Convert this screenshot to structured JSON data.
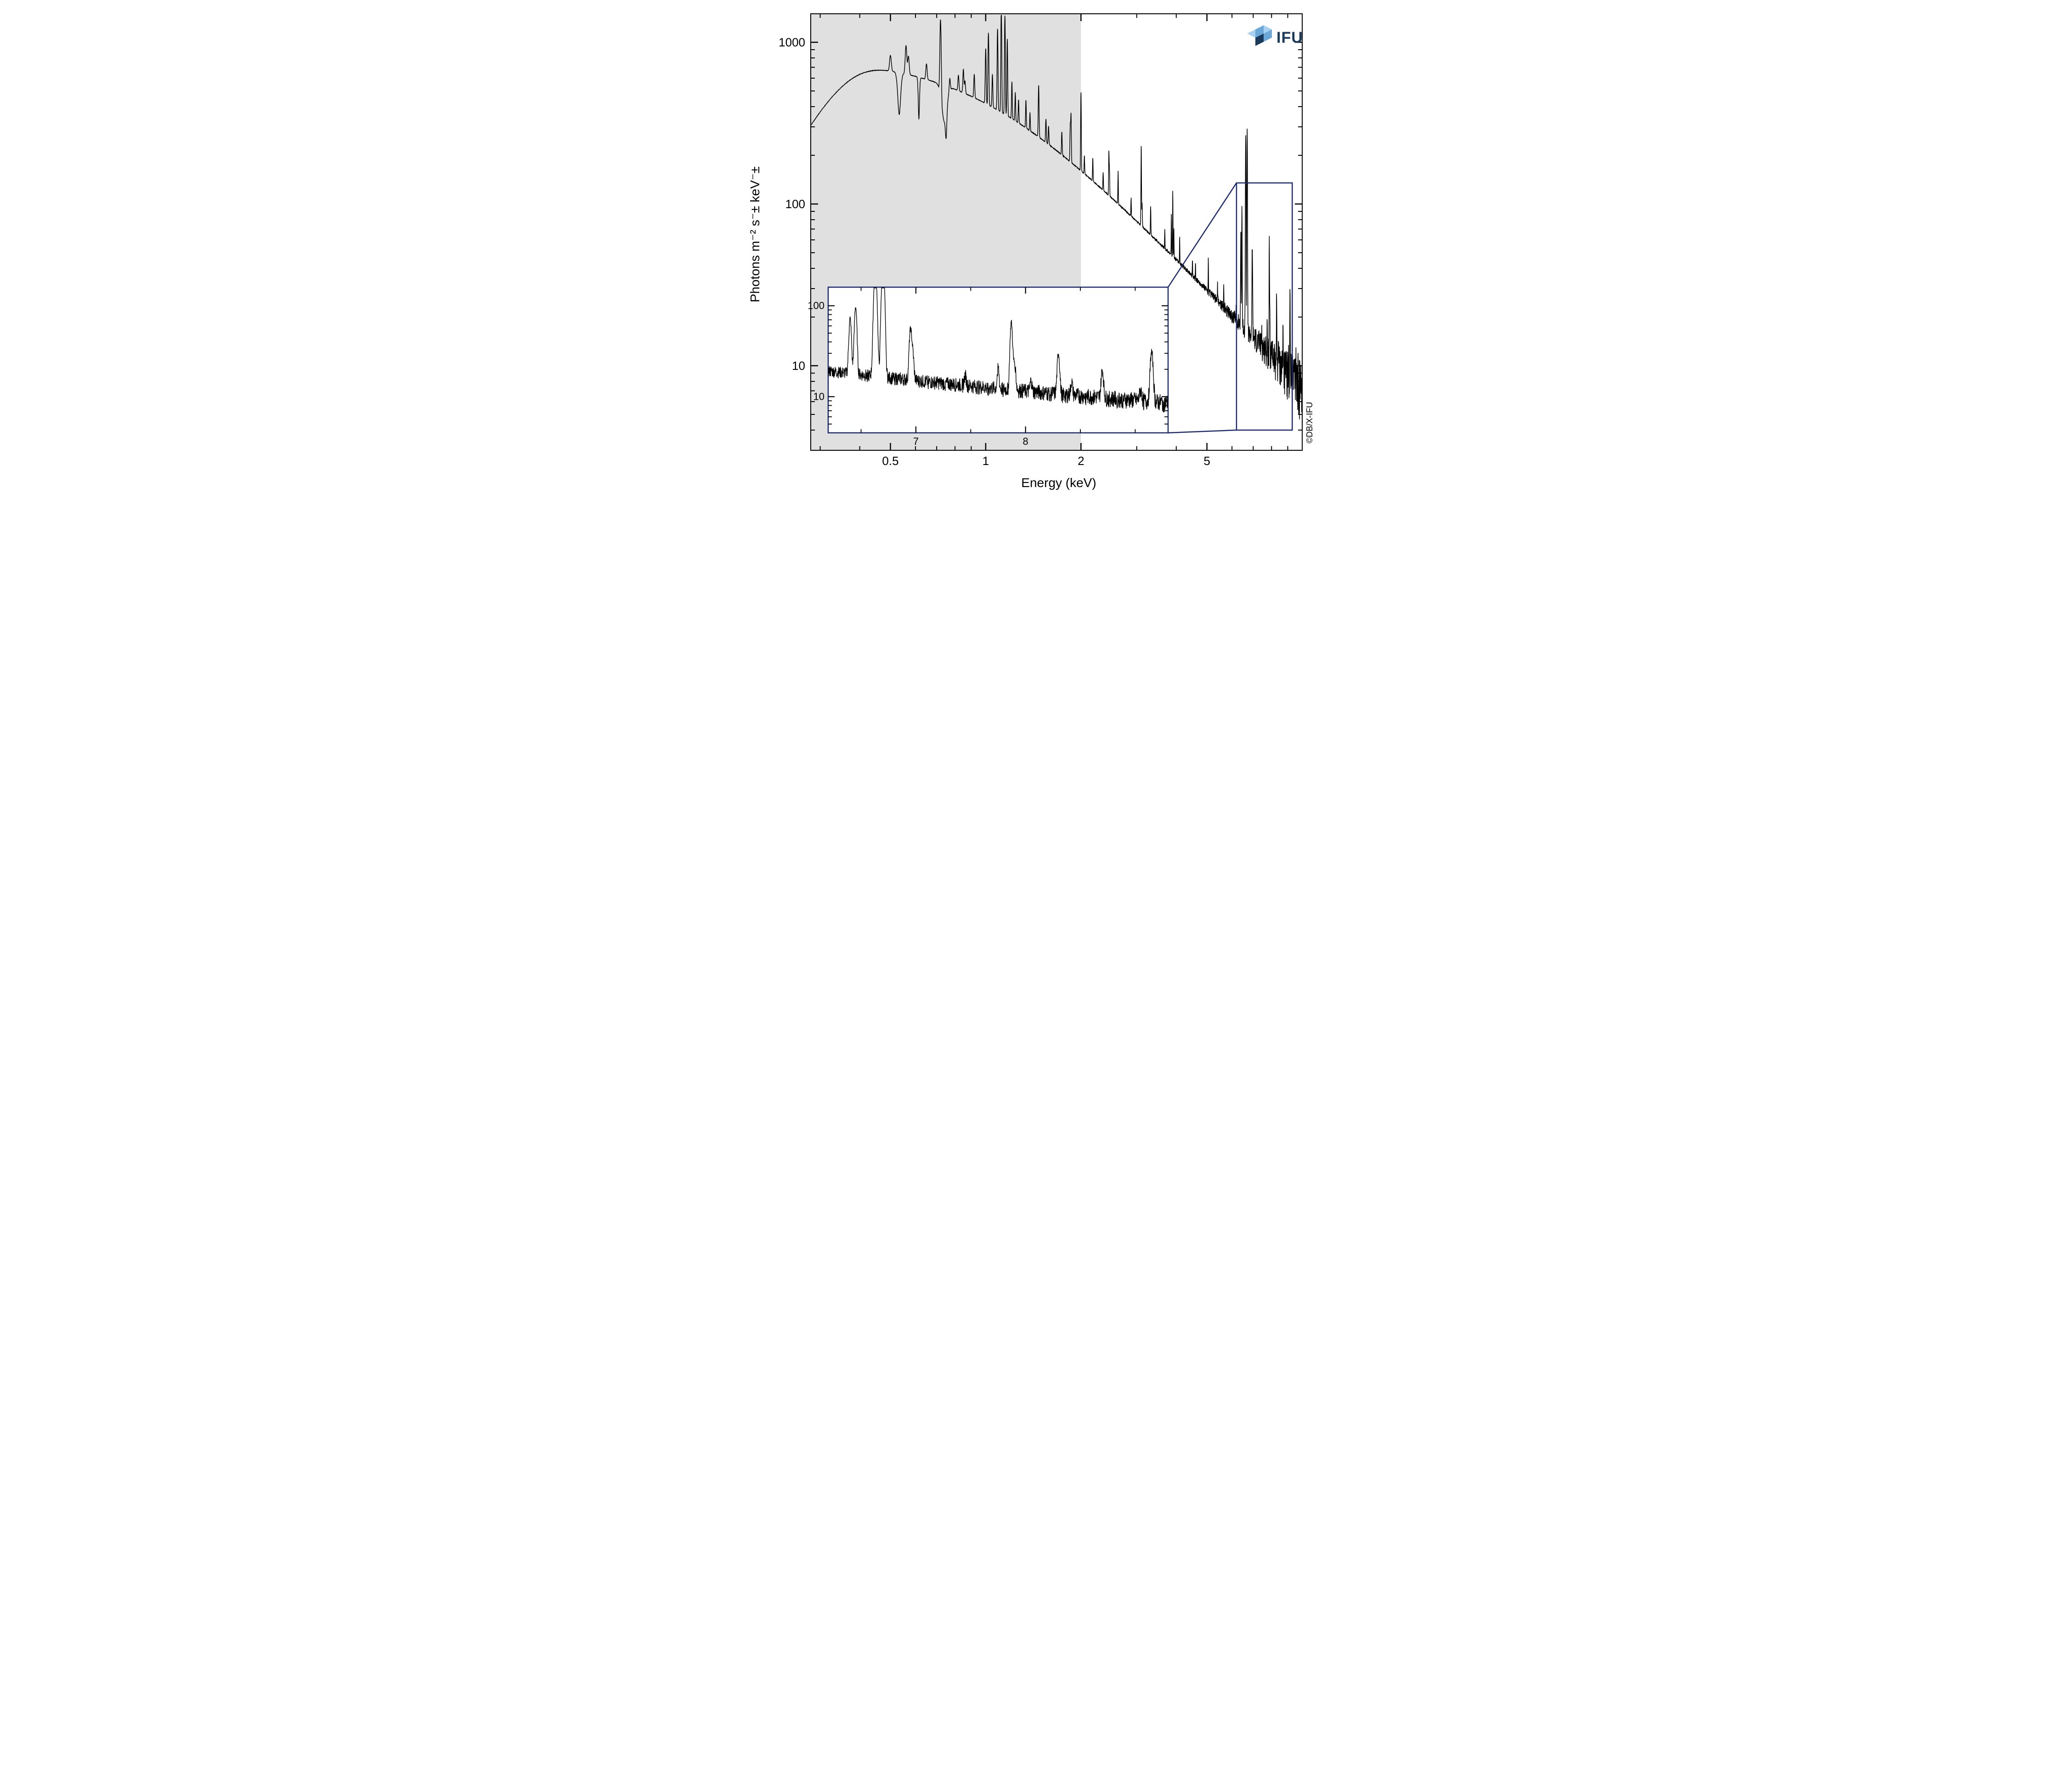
{
  "main_chart": {
    "type": "line-spectrum",
    "xlabel": "Energy (keV)",
    "ylabel": "Photons m⁻² s⁻± keV⁻±",
    "xscale": "log",
    "yscale": "log",
    "xlim": [
      0.28,
      10.0
    ],
    "ylim": [
      3,
      1500
    ],
    "xticks_major": [
      0.5,
      1,
      2,
      5
    ],
    "xticks_minor": [
      0.3,
      0.4,
      0.6,
      0.7,
      0.8,
      0.9,
      3,
      4,
      6,
      7,
      8,
      9,
      10
    ],
    "yticks_major": [
      10,
      100,
      1000
    ],
    "yticks_minor": [
      3,
      4,
      5,
      6,
      7,
      8,
      9,
      20,
      30,
      40,
      50,
      60,
      70,
      80,
      90,
      200,
      300,
      400,
      500,
      600,
      700,
      800,
      900
    ],
    "background_color": "#ffffff",
    "shaded_region": {
      "xmin": 0.28,
      "xmax": 2.0,
      "color": "#e0e0e0"
    },
    "line_color": "#000000",
    "line_width": 1.5,
    "axis_color": "#000000",
    "axis_width": 2,
    "tick_fontsize": 26,
    "label_fontsize": 28
  },
  "inset_chart": {
    "type": "line-spectrum",
    "xscale": "linear",
    "yscale": "log",
    "xlim": [
      6.2,
      9.3
    ],
    "ylim": [
      4,
      160
    ],
    "xticks_major": [
      7,
      8
    ],
    "xticks_minor": [
      6.5,
      7.5,
      8.5,
      9
    ],
    "yticks_major": [
      10,
      100
    ],
    "yticks_minor": [
      5,
      6,
      7,
      8,
      9,
      20,
      30,
      40,
      50,
      60,
      70,
      80,
      90
    ],
    "border_color": "#1a2a6c",
    "border_width": 2.5,
    "line_color": "#000000",
    "line_width": 1.4,
    "tick_fontsize": 22,
    "background_color": "#ffffff"
  },
  "zoom_box": {
    "xmin": 6.2,
    "xmax": 9.3,
    "color": "#1a2a6c",
    "width": 2.5
  },
  "logo": {
    "text": "IFU",
    "color": "#1a3a5c",
    "icon_colors": [
      "#a8d0f0",
      "#6ba8d8",
      "#1a3a5c"
    ]
  },
  "copyright": "©DB/X-IFU",
  "xtick_labels": {
    "0.5": "0.5",
    "1": "1",
    "2": "2",
    "5": "5"
  },
  "ytick_labels": {
    "10": "10",
    "100": "100",
    "1000": "1000"
  },
  "inset_xtick_labels": {
    "7": "7",
    "8": "8"
  },
  "inset_ytick_labels": {
    "10": "10",
    "100": "100"
  }
}
